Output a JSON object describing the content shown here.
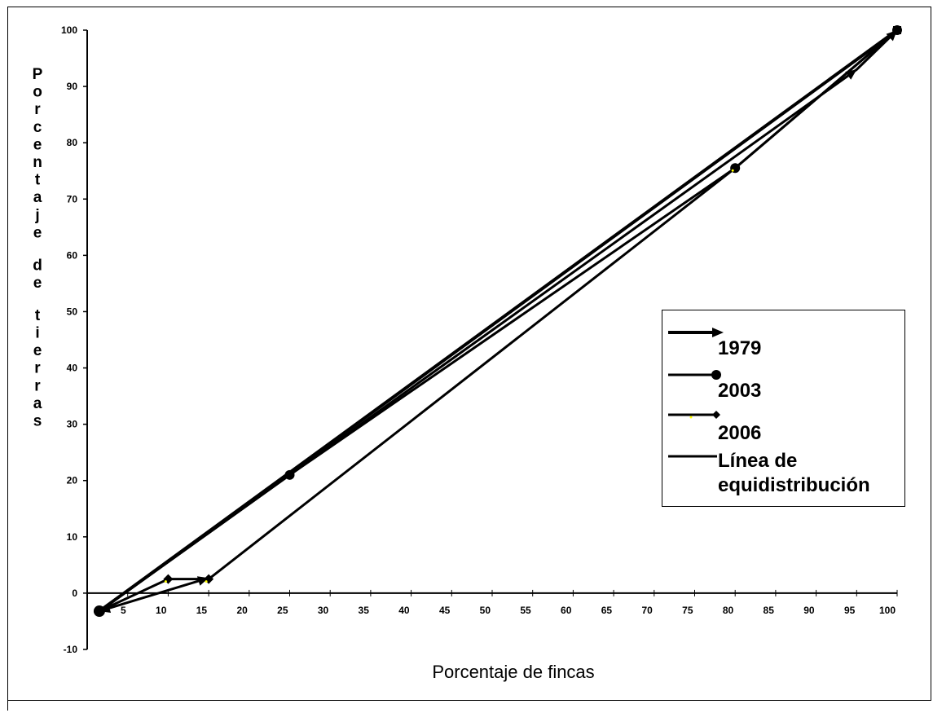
{
  "chart_data": {
    "type": "line",
    "xlabel": "Porcentaje de fincas",
    "ylabel": "Porcentaje de tierras",
    "xlim": [
      0,
      100
    ],
    "ylim": [
      -10,
      100
    ],
    "x_ticks": [
      5,
      10,
      15,
      20,
      25,
      30,
      35,
      40,
      45,
      50,
      55,
      60,
      65,
      70,
      75,
      80,
      85,
      90,
      95,
      100
    ],
    "y_ticks": [
      -10,
      0,
      10,
      20,
      30,
      40,
      50,
      60,
      70,
      80,
      90,
      100
    ],
    "grid": false,
    "legend_position": "right",
    "series": [
      {
        "name": "1979",
        "marker": "arrow",
        "points": [
          [
            1.5,
            -3.2
          ],
          [
            15,
            2.7
          ],
          [
            1.5,
            -3.2
          ],
          [
            95,
            93
          ],
          [
            100,
            100
          ]
        ]
      },
      {
        "name": "2003",
        "marker": "circle",
        "points": [
          [
            1.5,
            -3.2
          ],
          [
            25,
            21
          ],
          [
            80,
            75.5
          ],
          [
            100,
            100
          ]
        ]
      },
      {
        "name": "2006",
        "marker": "diamond",
        "points": [
          [
            1.5,
            -3.2
          ],
          [
            10,
            2.5
          ],
          [
            15,
            2.5
          ],
          [
            80,
            75.5
          ],
          [
            100,
            100
          ]
        ]
      },
      {
        "name": "Línea de equidistribución",
        "marker": "none",
        "points": [
          [
            1.5,
            -3.2
          ],
          [
            100,
            100
          ]
        ]
      }
    ]
  },
  "legend": {
    "items": [
      {
        "label": "1979",
        "marker": "arrow"
      },
      {
        "label": "2003",
        "marker": "circle"
      },
      {
        "label": "2006",
        "marker": "diamond"
      },
      {
        "label": "Línea de\nequidistribución",
        "marker": "none"
      }
    ]
  },
  "colors": {
    "line": "#000000",
    "marker_accent": "#ffff00"
  }
}
